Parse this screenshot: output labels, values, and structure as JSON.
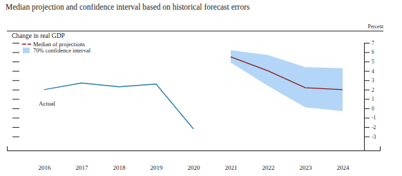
{
  "chart_data": {
    "type": "line",
    "title": "Median projection and confidence interval based on historical forecast errors",
    "y_label": "Change in real GDP",
    "y2_label": "Percent",
    "annotations": [
      "Actual"
    ],
    "xlim": [
      2015,
      2025
    ],
    "xticks": [
      2016,
      2017,
      2018,
      2019,
      2020,
      2021,
      2022,
      2023,
      2024
    ],
    "ylim": [
      -4.5,
      7
    ],
    "yticks": [
      -3,
      -2,
      -1,
      0,
      1,
      2,
      3,
      4,
      5,
      6,
      7
    ],
    "legend": "top-left",
    "series": [
      {
        "color": "#2b80a8",
        "line_style": "solid",
        "x": [
          2016,
          2017,
          2018,
          2019,
          2020
        ],
        "values": [
          2.0,
          2.7,
          2.3,
          2.6,
          -2.2
        ]
      },
      {
        "name": "Median of projections",
        "color": "#8b1c1c",
        "line_style": "solid",
        "x": [
          2021,
          2022,
          2023,
          2024
        ],
        "values": [
          5.5,
          4.0,
          2.2,
          2.0
        ]
      },
      {
        "name": "70% confidence interval",
        "type": "area",
        "color": "#b3d5f7",
        "x": [
          2021,
          2022,
          2023,
          2024
        ],
        "lower": [
          4.9,
          2.4,
          0.1,
          -0.3
        ],
        "upper": [
          6.2,
          5.7,
          4.4,
          4.3
        ]
      }
    ]
  }
}
